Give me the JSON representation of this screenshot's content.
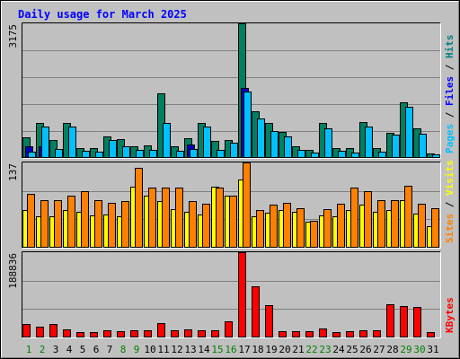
{
  "chart_data": {
    "type": "bar",
    "title": "Daily usage for March 2025",
    "days": [
      "1",
      "2",
      "3",
      "4",
      "5",
      "6",
      "7",
      "8",
      "9",
      "10",
      "11",
      "12",
      "13",
      "14",
      "15",
      "16",
      "17",
      "18",
      "19",
      "20",
      "21",
      "22",
      "23",
      "24",
      "25",
      "26",
      "27",
      "28",
      "29",
      "30",
      "31"
    ],
    "weekend_days": [
      "1",
      "2",
      "8",
      "9",
      "15",
      "16",
      "22",
      "23",
      "29",
      "30"
    ],
    "panels": [
      {
        "id": "hits-files-pages",
        "ymax_label": "3175",
        "ymax": 3175,
        "side_labels": [
          {
            "text": "Pages",
            "color": "#00c0ff"
          },
          {
            "text": " / ",
            "color": "#000000"
          },
          {
            "text": "Files",
            "color": "#0000ff"
          },
          {
            "text": " / ",
            "color": "#000000"
          },
          {
            "text": "Hits",
            "color": "#008080"
          }
        ],
        "series": [
          {
            "name": "Hits",
            "color": "#008060",
            "values": [
              490,
              820,
              420,
              830,
              240,
              230,
              510,
              450,
              280,
              290,
              1530,
              280,
              460,
              820,
              400,
              430,
              3175,
              1100,
              830,
              610,
              280,
              190,
              830,
              240,
              230,
              850,
              230,
              590,
              1320,
              690,
              100
            ]
          },
          {
            "name": "Files",
            "color": "#0000c0",
            "values": [
              270,
              270,
              0,
              0,
              0,
              0,
              0,
              0,
              0,
              0,
              0,
              0,
              320,
              0,
              0,
              0,
              1650,
              0,
              0,
              0,
              0,
              0,
              0,
              0,
              0,
              0,
              0,
              0,
              0,
              0,
              0
            ]
          },
          {
            "name": "Pages",
            "color": "#00c0ff",
            "values": [
              150,
              750,
              220,
              740,
              160,
              150,
              430,
              270,
              200,
              180,
              830,
              170,
              220,
              740,
              180,
              360,
              1560,
              930,
              640,
              500,
              180,
              130,
              700,
              160,
              130,
              750,
              150,
              560,
              1200,
              570,
              80
            ]
          }
        ]
      },
      {
        "id": "visits-sites",
        "ymax_label": "137",
        "ymax": 137,
        "side_labels": [
          {
            "text": "Sites",
            "color": "#ff8000"
          },
          {
            "text": " / ",
            "color": "#000000"
          },
          {
            "text": "Visits",
            "color": "#ffff00"
          }
        ],
        "series": [
          {
            "name": "Visits",
            "color": "#ffff00",
            "values": [
              60,
              50,
              50,
              60,
              58,
              52,
              54,
              50,
              98,
              84,
              75,
              62,
              57,
              53,
              98,
              83,
              110,
              50,
              56,
              60,
              57,
              42,
              52,
              50,
              61,
              69,
              57,
              60,
              76,
              55,
              35
            ]
          },
          {
            "name": "Sites",
            "color": "#ff8000",
            "values": [
              86,
              76,
              76,
              84,
              91,
              77,
              72,
              75,
              129,
              96,
              97,
              96,
              75,
              70,
              97,
              84,
              137,
              61,
              69,
              72,
              64,
              43,
              62,
              70,
              96,
              91,
              76,
              76,
              100,
              70,
              64
            ]
          }
        ]
      },
      {
        "id": "kbytes",
        "ymax_label": "188836",
        "ymax": 188836,
        "side_labels": [
          {
            "text": "KBytes",
            "color": "#ff0000"
          }
        ],
        "series": [
          {
            "name": "KBytes",
            "color": "#ff0000",
            "values": [
              30000,
              23000,
              29000,
              17000,
              12000,
              12000,
              15000,
              14000,
              15000,
              16000,
              32000,
              15000,
              17000,
              16000,
              16000,
              36000,
              188836,
              113000,
              71000,
              13000,
              14000,
              14000,
              19000,
              12000,
              14000,
              15000,
              15000,
              73000,
              70000,
              67000,
              12000
            ]
          }
        ]
      }
    ]
  }
}
